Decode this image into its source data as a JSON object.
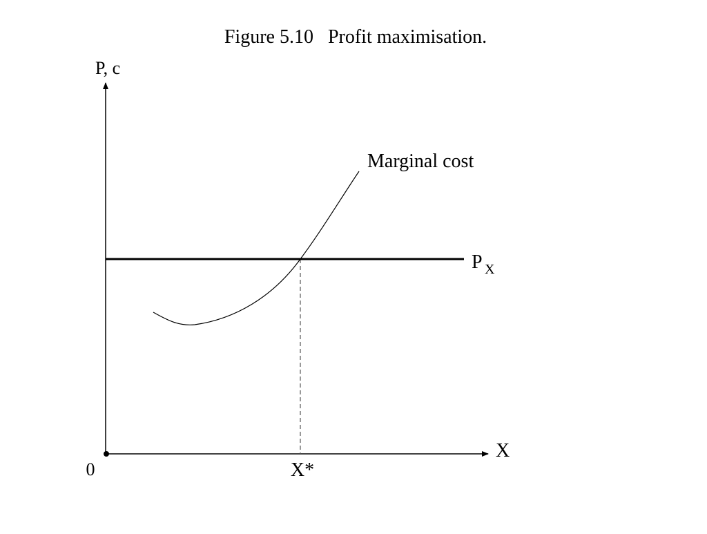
{
  "title": "Figure 5.10   Profit maximisation.",
  "axes": {
    "y_label": "P, c",
    "x_label": "X",
    "origin": "0"
  },
  "curves": {
    "marginal_cost": "Marginal cost",
    "price": {
      "main": "P",
      "sub": "X"
    }
  },
  "x_star": "X*"
}
